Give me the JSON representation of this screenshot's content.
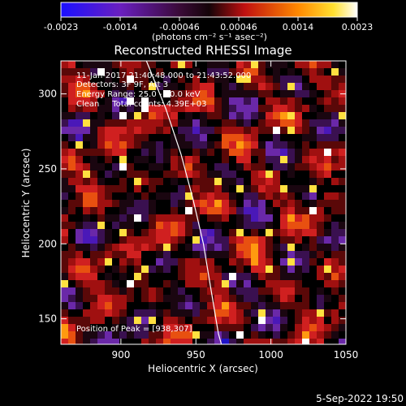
{
  "chart_data": {
    "type": "heatmap",
    "title": "Reconstructed RHESSI Image",
    "xlabel": "Heliocentric X (arcsec)",
    "ylabel": "Heliocentric Y (arcsec)",
    "xlim": [
      860,
      1050
    ],
    "ylim": [
      133,
      322
    ],
    "x_ticks": [
      900,
      950,
      1000,
      1050
    ],
    "y_ticks": [
      150,
      200,
      250,
      300
    ],
    "colorbar": {
      "range": [
        -0.0023,
        0.0023
      ],
      "ticks": [
        "-0.0023",
        "-0.0014",
        "-0.00046",
        "0.00046",
        "0.0014",
        "0.0023"
      ],
      "units_label": "(photons cm⁻² s⁻¹ asec⁻²)",
      "colors": [
        "#1a10ff",
        "#5a1aa0",
        "#200818",
        "#c01010",
        "#ff8800",
        "#ffffff"
      ]
    },
    "annotations": [
      "11-Jan-2017 21:40:48.000 to 21:43:52.000",
      "Detectors: 3F 9F, Att 3",
      "Energy Range: 25.0 - 50.0 keV",
      "Clean     Total counts: 4.39E+03"
    ],
    "peak_label": "Position of Peak = [938,307]",
    "peak": [
      938,
      307
    ],
    "limb_curve": [
      [
        917,
        322
      ],
      [
        930,
        290
      ],
      [
        940,
        260
      ],
      [
        948,
        230
      ],
      [
        955,
        200
      ],
      [
        960,
        170
      ],
      [
        965,
        140
      ],
      [
        967,
        133
      ]
    ]
  },
  "footer": {
    "date": "5-Sep-2022 19:50"
  }
}
